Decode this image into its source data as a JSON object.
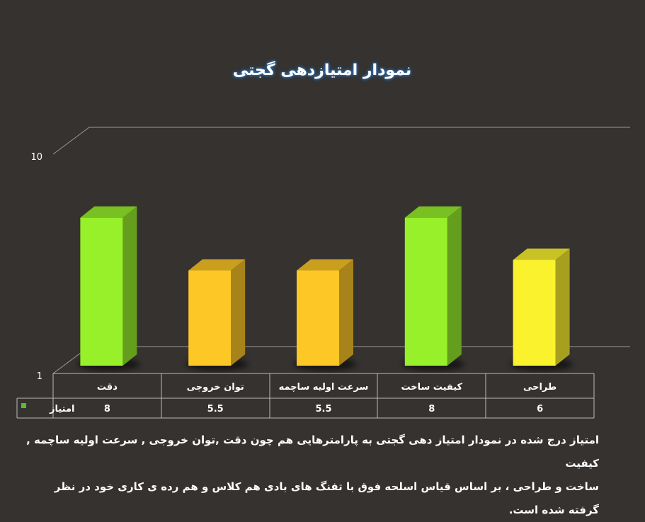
{
  "chart_data": {
    "type": "bar",
    "title": "نمودار امتیازدهی گجتی",
    "categories": [
      "دقت",
      "توان خروجی",
      "سرعت اولیه ساچمه",
      "کیفیت ساخت",
      "طراحی"
    ],
    "series": [
      {
        "name": "امتیاز",
        "values": [
          8,
          5.5,
          5.5,
          8,
          6
        ]
      }
    ],
    "value_labels": [
      "8",
      "5.5",
      "5.5",
      "8",
      "6"
    ],
    "ylim": [
      1,
      10
    ],
    "yticks": [
      "1",
      "10"
    ],
    "bar_colors": [
      "#97f02a",
      "#fdc726",
      "#fdc726",
      "#97f02a",
      "#fbf22e"
    ],
    "legend_color": "#5dbb2f",
    "data_table": true,
    "grid": false
  },
  "caption": {
    "line1": "امتیاز درج شده در نمودار امتیاز دهی گجتی  به پارامترهایی هم چون دقت ,توان خروجی , سرعت اولیه ساچمه , کیفیت",
    "line2": "ساخت و طراحی ، بر اساس قیاس اسلحه فوق با تفنگ های بادی هم کلاس و هم رده ی کاری خود در نظر گرفته شده است."
  },
  "colors": {
    "background": "#353230",
    "gridline": "#9a9a9a",
    "table_border": "#bbbbbb"
  }
}
